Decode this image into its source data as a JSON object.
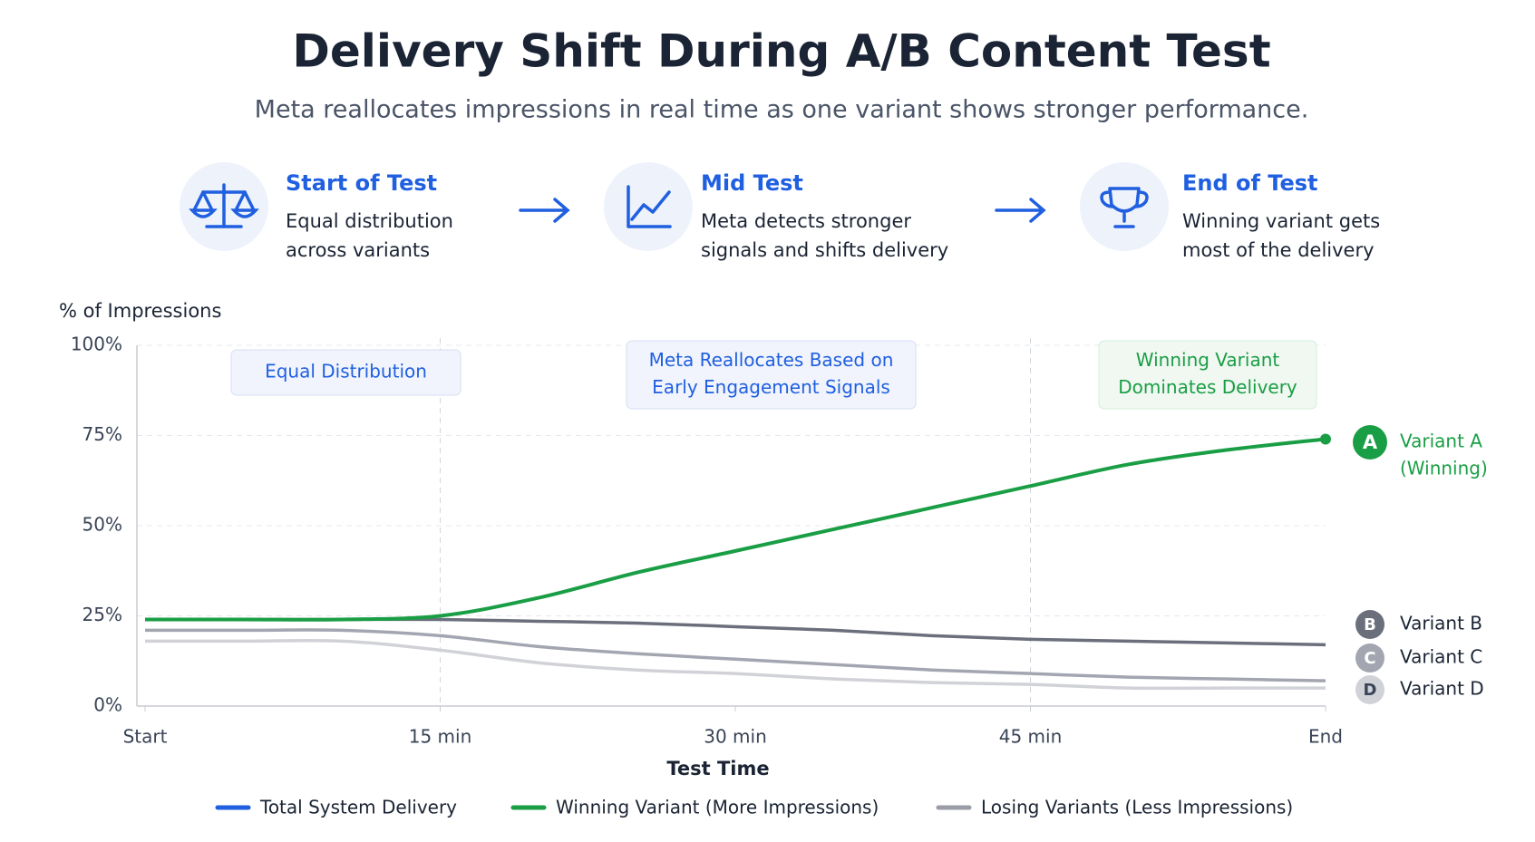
{
  "header": {
    "title": "Delivery Shift During A/B Content Test",
    "subtitle": "Meta reallocates impressions in real time as one variant shows stronger performance."
  },
  "steps": [
    {
      "title": "Start of Test",
      "description": [
        "Equal distribution",
        "across variants"
      ]
    },
    {
      "title": "Mid Test",
      "description": [
        "Meta detects stronger",
        "signals and shifts delivery"
      ]
    },
    {
      "title": "End of Test",
      "description": [
        "Winning variant gets",
        "most of the delivery"
      ]
    }
  ],
  "chart_data": {
    "type": "line",
    "ylabel": "% of Impressions",
    "xlabel": "Test Time",
    "x": [
      0,
      5,
      10,
      15,
      20,
      25,
      30,
      35,
      40,
      45,
      50,
      55,
      60
    ],
    "xlim": [
      0,
      60
    ],
    "xticks": [
      {
        "value": 0,
        "label": "Start"
      },
      {
        "value": 15,
        "label": "15 min"
      },
      {
        "value": 30,
        "label": "30 min"
      },
      {
        "value": 45,
        "label": "45 min"
      },
      {
        "value": 60,
        "label": "End"
      }
    ],
    "ylim": [
      0,
      100
    ],
    "yticks": [
      {
        "value": 0,
        "label": "0%"
      },
      {
        "value": 25,
        "label": "25%"
      },
      {
        "value": 50,
        "label": "50%"
      },
      {
        "value": 75,
        "label": "75%"
      },
      {
        "value": 100,
        "label": "100%"
      }
    ],
    "grid": true,
    "phase_lines": [
      15,
      45
    ],
    "annotations": [
      {
        "lines": [
          "Equal Distribution"
        ],
        "color": "#1f5fe0"
      },
      {
        "lines": [
          "Meta Reallocates Based on",
          "Early Engagement Signals"
        ],
        "color": "#1f5fe0"
      },
      {
        "lines": [
          "Winning Variant",
          "Dominates Delivery"
        ],
        "color": "#1a9e45"
      }
    ],
    "series": [
      {
        "name": "Variant A",
        "badge": "A",
        "note": "(Winning)",
        "color": "#1a9e45",
        "values": [
          24,
          24,
          24,
          25,
          30,
          37,
          43,
          49,
          55,
          61,
          67,
          71,
          74
        ]
      },
      {
        "name": "Variant B",
        "badge": "B",
        "color": "#6b6f7c",
        "values": [
          24,
          24,
          24,
          24,
          23.5,
          23,
          22,
          21,
          19.5,
          18.5,
          18,
          17.5,
          17
        ]
      },
      {
        "name": "Variant C",
        "badge": "C",
        "color": "#a3a6b0",
        "values": [
          21,
          21,
          21,
          19.5,
          16.5,
          14.5,
          13,
          11.5,
          10,
          9,
          8,
          7.5,
          7
        ]
      },
      {
        "name": "Variant D",
        "badge": "D",
        "color": "#d0d2d8",
        "values": [
          18,
          18,
          18,
          15.5,
          12,
          10,
          9,
          7.5,
          6.5,
          6,
          5,
          5,
          5
        ]
      }
    ],
    "legend": [
      {
        "name": "Total System Delivery",
        "color": "#1f5fe0"
      },
      {
        "name": "Winning Variant (More Impressions)",
        "color": "#1a9e45"
      },
      {
        "name": "Losing Variants (Less Impressions)",
        "color": "#9a9da6"
      }
    ]
  }
}
